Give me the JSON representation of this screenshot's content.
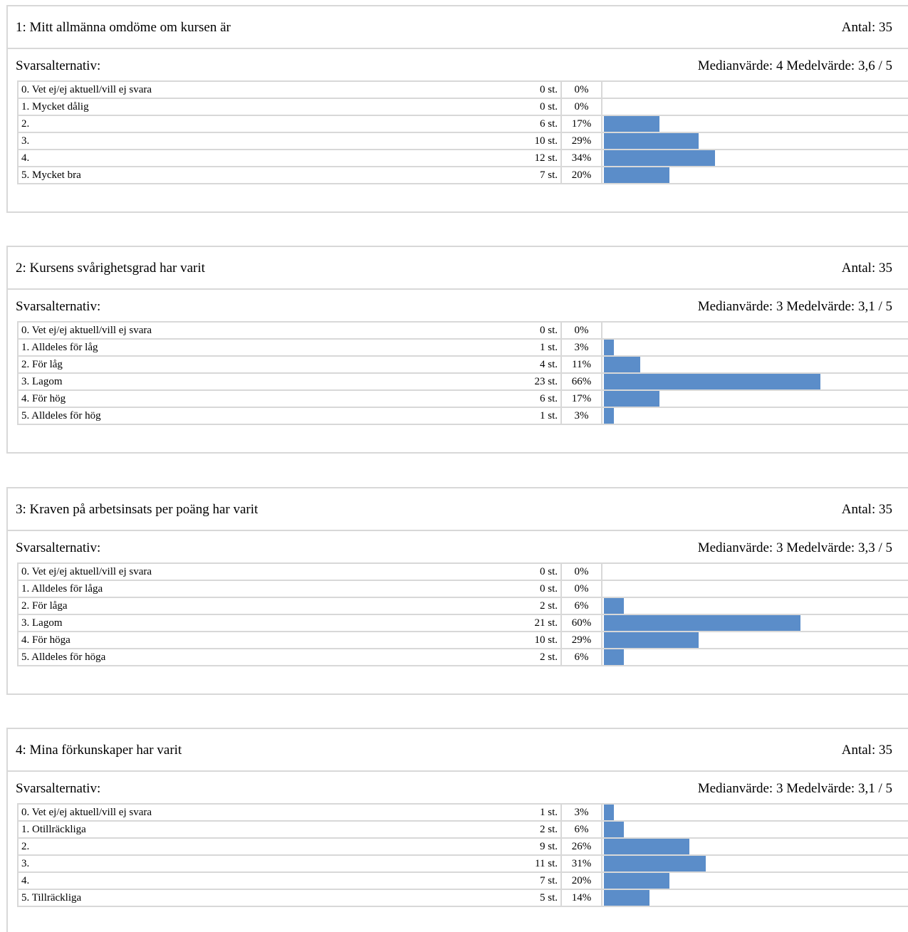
{
  "questions": [
    {
      "title": "1:  Mitt allmänna omdöme om kursen är",
      "count": "Antal:  35",
      "sub_label": "Svarsalternativ:",
      "stats": "Medianvärde: 4 Medelvärde: 3,6 / 5",
      "rows": [
        {
          "label": "0.  Vet ej/ej aktuell/vill ej svara",
          "count": "0 st.",
          "percent": "0%",
          "value": 0
        },
        {
          "label": "1.  Mycket dålig",
          "count": "0 st.",
          "percent": "0%",
          "value": 0
        },
        {
          "label": "2.",
          "count": "6 st.",
          "percent": "17%",
          "value": 17
        },
        {
          "label": "3.",
          "count": "10 st.",
          "percent": "29%",
          "value": 29
        },
        {
          "label": "4.",
          "count": "12 st.",
          "percent": "34%",
          "value": 34
        },
        {
          "label": "5.  Mycket bra",
          "count": "7 st.",
          "percent": "20%",
          "value": 20
        }
      ]
    },
    {
      "title": "2:  Kursens svårighetsgrad har varit",
      "count": "Antal:  35",
      "sub_label": "Svarsalternativ:",
      "stats": "Medianvärde: 3 Medelvärde: 3,1 / 5",
      "rows": [
        {
          "label": "0.  Vet ej/ej aktuell/vill ej svara",
          "count": "0 st.",
          "percent": "0%",
          "value": 0
        },
        {
          "label": "1.  Alldeles för låg",
          "count": "1 st.",
          "percent": "3%",
          "value": 3
        },
        {
          "label": "2.  För låg",
          "count": "4 st.",
          "percent": "11%",
          "value": 11
        },
        {
          "label": "3.  Lagom",
          "count": "23 st.",
          "percent": "66%",
          "value": 66
        },
        {
          "label": "4.  För hög",
          "count": "6 st.",
          "percent": "17%",
          "value": 17
        },
        {
          "label": "5.  Alldeles för hög",
          "count": "1 st.",
          "percent": "3%",
          "value": 3
        }
      ]
    },
    {
      "title": "3:  Kraven på arbetsinsats per poäng har varit",
      "count": "Antal:  35",
      "sub_label": "Svarsalternativ:",
      "stats": "Medianvärde: 3 Medelvärde: 3,3 / 5",
      "rows": [
        {
          "label": "0.  Vet ej/ej aktuell/vill ej svara",
          "count": "0 st.",
          "percent": "0%",
          "value": 0
        },
        {
          "label": "1.  Alldeles för låga",
          "count": "0 st.",
          "percent": "0%",
          "value": 0
        },
        {
          "label": "2.  För låga",
          "count": "2 st.",
          "percent": "6%",
          "value": 6
        },
        {
          "label": "3.  Lagom",
          "count": "21 st.",
          "percent": "60%",
          "value": 60
        },
        {
          "label": "4.  För höga",
          "count": "10 st.",
          "percent": "29%",
          "value": 29
        },
        {
          "label": "5.  Alldeles för höga",
          "count": "2 st.",
          "percent": "6%",
          "value": 6
        }
      ]
    },
    {
      "title": "4:  Mina förkunskaper har varit",
      "count": "Antal:  35",
      "sub_label": "Svarsalternativ:",
      "stats": "Medianvärde: 3 Medelvärde: 3,1 / 5",
      "rows": [
        {
          "label": "0.  Vet ej/ej aktuell/vill ej svara",
          "count": "1 st.",
          "percent": "3%",
          "value": 3
        },
        {
          "label": "1.  Otillräckliga",
          "count": "2 st.",
          "percent": "6%",
          "value": 6
        },
        {
          "label": "2.",
          "count": "9 st.",
          "percent": "26%",
          "value": 26
        },
        {
          "label": "3.",
          "count": "11 st.",
          "percent": "31%",
          "value": 31
        },
        {
          "label": "4.",
          "count": "7 st.",
          "percent": "20%",
          "value": 20
        },
        {
          "label": "5.  Tillräckliga",
          "count": "5 st.",
          "percent": "14%",
          "value": 14
        }
      ]
    }
  ],
  "colors": {
    "bar": "#5b8dc9",
    "border": "#d8d8d8"
  }
}
